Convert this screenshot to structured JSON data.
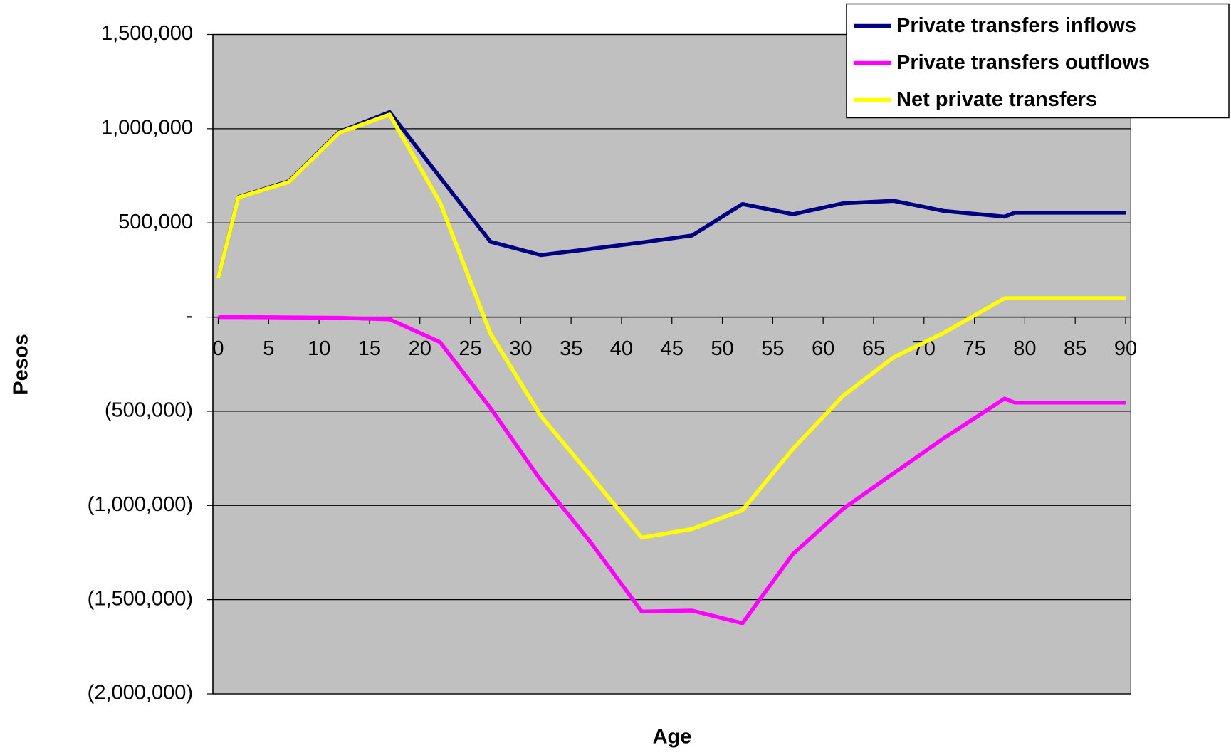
{
  "chart_data": {
    "type": "line",
    "x_label": "Age",
    "y_label": "Pesos",
    "x": [
      0,
      2,
      7,
      12,
      17,
      22,
      27,
      32,
      37,
      42,
      47,
      52,
      57,
      62,
      67,
      72,
      78,
      79,
      90
    ],
    "series": [
      {
        "name": "Private transfers inflows",
        "color": "#000080",
        "values": [
          208000,
          637000,
          721000,
          983000,
          1088000,
          742000,
          400000,
          329000,
          362000,
          396000,
          433000,
          600000,
          546000,
          604000,
          617000,
          563000,
          533000,
          554000,
          554000
        ]
      },
      {
        "name": "Private transfers outflows",
        "color": "#ff00ff",
        "values": [
          0,
          0,
          -2000,
          -4000,
          -12000,
          -133000,
          -483000,
          -867000,
          -1200000,
          -1563000,
          -1558000,
          -1625000,
          -1258000,
          -1017000,
          -829000,
          -642000,
          -433000,
          -454000,
          -454000
        ]
      },
      {
        "name": "Net private transfers",
        "color": "#ffff00",
        "values": [
          208000,
          635000,
          717000,
          979000,
          1075000,
          608000,
          -88000,
          -525000,
          -846000,
          -1171000,
          -1125000,
          -1025000,
          -700000,
          -417000,
          -213000,
          -83000,
          100000,
          100000,
          100000
        ]
      }
    ],
    "xlim": [
      0,
      90
    ],
    "xticks": [
      0,
      5,
      10,
      15,
      20,
      25,
      30,
      35,
      40,
      45,
      50,
      55,
      60,
      65,
      70,
      75,
      80,
      85,
      90
    ],
    "ylim": [
      -2000000,
      1500000
    ],
    "yticks": [
      {
        "value": -2000000,
        "label": "(2,000,000)"
      },
      {
        "value": -1500000,
        "label": "(1,500,000)"
      },
      {
        "value": -1000000,
        "label": "(1,000,000)"
      },
      {
        "value": -500000,
        "label": "(500,000)"
      },
      {
        "value": 0,
        "label": "-"
      },
      {
        "value": 500000,
        "label": "500,000"
      },
      {
        "value": 1000000,
        "label": "1,000,000"
      },
      {
        "value": 1500000,
        "label": "1,500,000"
      }
    ],
    "grid": true,
    "legend_position": "upper right",
    "plot_background": "#c0c0c0"
  }
}
